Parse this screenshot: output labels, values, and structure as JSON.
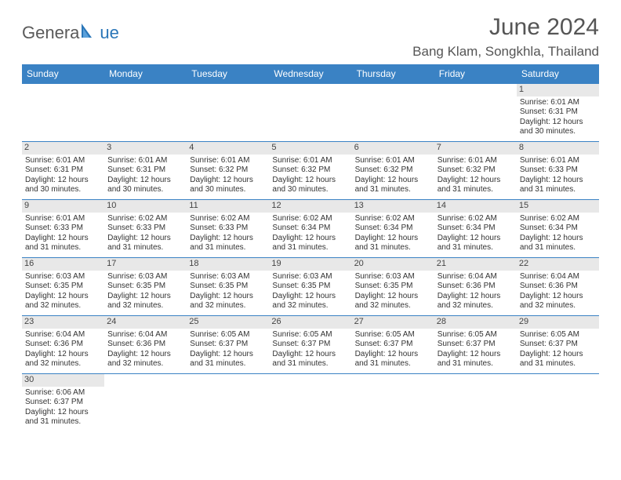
{
  "colors": {
    "header_bg": "#3a82c4",
    "header_text": "#ffffff",
    "daynum_bg": "#e8e8e8",
    "cell_border": "#3a82c4",
    "title_color": "#555555",
    "logo_gray": "#5a5a5a",
    "logo_blue": "#2a76b8",
    "body_text": "#333333",
    "page_bg": "#ffffff"
  },
  "logo": {
    "part1": "Genera",
    "part2": "ue"
  },
  "title": "June 2024",
  "location": "Bang Klam, Songkhla, Thailand",
  "weekdays": [
    "Sunday",
    "Monday",
    "Tuesday",
    "Wednesday",
    "Thursday",
    "Friday",
    "Saturday"
  ],
  "layout": {
    "columns": 7,
    "rows": 6,
    "first_day_column_index": 6,
    "days_in_month": 30,
    "cell_font_size_pt": 7.5,
    "daynum_font_size_pt": 8,
    "header_font_size_pt": 9,
    "title_font_size_pt": 22,
    "location_font_size_pt": 13
  },
  "days": [
    {
      "n": 1,
      "sunrise": "6:01 AM",
      "sunset": "6:31 PM",
      "daylight": "12 hours and 30 minutes."
    },
    {
      "n": 2,
      "sunrise": "6:01 AM",
      "sunset": "6:31 PM",
      "daylight": "12 hours and 30 minutes."
    },
    {
      "n": 3,
      "sunrise": "6:01 AM",
      "sunset": "6:31 PM",
      "daylight": "12 hours and 30 minutes."
    },
    {
      "n": 4,
      "sunrise": "6:01 AM",
      "sunset": "6:32 PM",
      "daylight": "12 hours and 30 minutes."
    },
    {
      "n": 5,
      "sunrise": "6:01 AM",
      "sunset": "6:32 PM",
      "daylight": "12 hours and 30 minutes."
    },
    {
      "n": 6,
      "sunrise": "6:01 AM",
      "sunset": "6:32 PM",
      "daylight": "12 hours and 31 minutes."
    },
    {
      "n": 7,
      "sunrise": "6:01 AM",
      "sunset": "6:32 PM",
      "daylight": "12 hours and 31 minutes."
    },
    {
      "n": 8,
      "sunrise": "6:01 AM",
      "sunset": "6:33 PM",
      "daylight": "12 hours and 31 minutes."
    },
    {
      "n": 9,
      "sunrise": "6:01 AM",
      "sunset": "6:33 PM",
      "daylight": "12 hours and 31 minutes."
    },
    {
      "n": 10,
      "sunrise": "6:02 AM",
      "sunset": "6:33 PM",
      "daylight": "12 hours and 31 minutes."
    },
    {
      "n": 11,
      "sunrise": "6:02 AM",
      "sunset": "6:33 PM",
      "daylight": "12 hours and 31 minutes."
    },
    {
      "n": 12,
      "sunrise": "6:02 AM",
      "sunset": "6:34 PM",
      "daylight": "12 hours and 31 minutes."
    },
    {
      "n": 13,
      "sunrise": "6:02 AM",
      "sunset": "6:34 PM",
      "daylight": "12 hours and 31 minutes."
    },
    {
      "n": 14,
      "sunrise": "6:02 AM",
      "sunset": "6:34 PM",
      "daylight": "12 hours and 31 minutes."
    },
    {
      "n": 15,
      "sunrise": "6:02 AM",
      "sunset": "6:34 PM",
      "daylight": "12 hours and 31 minutes."
    },
    {
      "n": 16,
      "sunrise": "6:03 AM",
      "sunset": "6:35 PM",
      "daylight": "12 hours and 32 minutes."
    },
    {
      "n": 17,
      "sunrise": "6:03 AM",
      "sunset": "6:35 PM",
      "daylight": "12 hours and 32 minutes."
    },
    {
      "n": 18,
      "sunrise": "6:03 AM",
      "sunset": "6:35 PM",
      "daylight": "12 hours and 32 minutes."
    },
    {
      "n": 19,
      "sunrise": "6:03 AM",
      "sunset": "6:35 PM",
      "daylight": "12 hours and 32 minutes."
    },
    {
      "n": 20,
      "sunrise": "6:03 AM",
      "sunset": "6:35 PM",
      "daylight": "12 hours and 32 minutes."
    },
    {
      "n": 21,
      "sunrise": "6:04 AM",
      "sunset": "6:36 PM",
      "daylight": "12 hours and 32 minutes."
    },
    {
      "n": 22,
      "sunrise": "6:04 AM",
      "sunset": "6:36 PM",
      "daylight": "12 hours and 32 minutes."
    },
    {
      "n": 23,
      "sunrise": "6:04 AM",
      "sunset": "6:36 PM",
      "daylight": "12 hours and 32 minutes."
    },
    {
      "n": 24,
      "sunrise": "6:04 AM",
      "sunset": "6:36 PM",
      "daylight": "12 hours and 32 minutes."
    },
    {
      "n": 25,
      "sunrise": "6:05 AM",
      "sunset": "6:37 PM",
      "daylight": "12 hours and 31 minutes."
    },
    {
      "n": 26,
      "sunrise": "6:05 AM",
      "sunset": "6:37 PM",
      "daylight": "12 hours and 31 minutes."
    },
    {
      "n": 27,
      "sunrise": "6:05 AM",
      "sunset": "6:37 PM",
      "daylight": "12 hours and 31 minutes."
    },
    {
      "n": 28,
      "sunrise": "6:05 AM",
      "sunset": "6:37 PM",
      "daylight": "12 hours and 31 minutes."
    },
    {
      "n": 29,
      "sunrise": "6:05 AM",
      "sunset": "6:37 PM",
      "daylight": "12 hours and 31 minutes."
    },
    {
      "n": 30,
      "sunrise": "6:06 AM",
      "sunset": "6:37 PM",
      "daylight": "12 hours and 31 minutes."
    }
  ],
  "labels": {
    "sunrise": "Sunrise:",
    "sunset": "Sunset:",
    "daylight": "Daylight:"
  }
}
